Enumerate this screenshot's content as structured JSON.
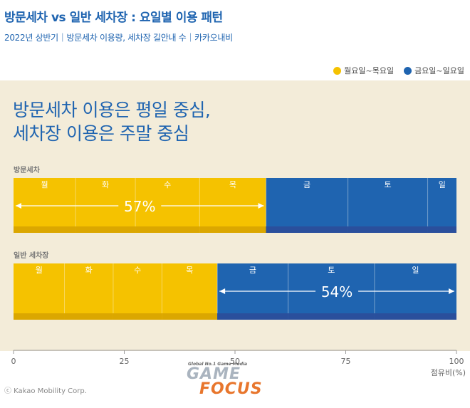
{
  "header": {
    "title": "방문세차 vs 일반 세차장 : 요일별 이용 패턴",
    "subtitle": "2022년 상반기｜방문세차 이용량, 세차장 길안내 수｜카카오내비"
  },
  "headline": {
    "line1": "방문세차 이용은 평일 중심,",
    "line2": "세차장 이용은 주말 중심"
  },
  "credit": "ⓒ Kakao Mobility Corp.",
  "logo": {
    "tagline": "Global No.1 Game Media",
    "game": "GAME",
    "focus": "FOCUS"
  },
  "chart_data": {
    "type": "bar",
    "stacked": true,
    "orientation": "horizontal",
    "xlabel": "점유비(%)",
    "xlim": [
      0,
      100
    ],
    "xticks": [
      0,
      25,
      50,
      75,
      100
    ],
    "legend_position": "top-right",
    "colors": {
      "weekday": "#f5c200",
      "weekend": "#1f64b0",
      "weekday_band": "#dba700",
      "weekend_band": "#2a4f9c"
    },
    "legend": [
      {
        "label": "월요일~목요일",
        "color": "#f5c200"
      },
      {
        "label": "금요일~일요일",
        "color": "#1f64b0"
      }
    ],
    "rows": [
      {
        "label": "방문세차",
        "segments": [
          {
            "day": "월",
            "value": 14,
            "group": "weekday"
          },
          {
            "day": "화",
            "value": 13.5,
            "group": "weekday"
          },
          {
            "day": "수",
            "value": 14.5,
            "group": "weekday"
          },
          {
            "day": "목",
            "value": 15,
            "group": "weekday"
          },
          {
            "day": "금",
            "value": 18.5,
            "group": "weekend"
          },
          {
            "day": "토",
            "value": 18,
            "group": "weekend"
          },
          {
            "day": "일",
            "value": 6.5,
            "group": "weekend"
          }
        ],
        "highlight": {
          "text": "57%",
          "value": 57,
          "group": "weekday"
        }
      },
      {
        "label": "일반 세차장",
        "segments": [
          {
            "day": "월",
            "value": 11.5,
            "group": "weekday"
          },
          {
            "day": "화",
            "value": 11,
            "group": "weekday"
          },
          {
            "day": "수",
            "value": 11,
            "group": "weekday"
          },
          {
            "day": "목",
            "value": 12.5,
            "group": "weekday"
          },
          {
            "day": "금",
            "value": 16,
            "group": "weekend"
          },
          {
            "day": "토",
            "value": 19.5,
            "group": "weekend"
          },
          {
            "day": "일",
            "value": 18.5,
            "group": "weekend"
          }
        ],
        "highlight": {
          "text": "54%",
          "value": 54,
          "group": "weekend"
        }
      }
    ]
  }
}
